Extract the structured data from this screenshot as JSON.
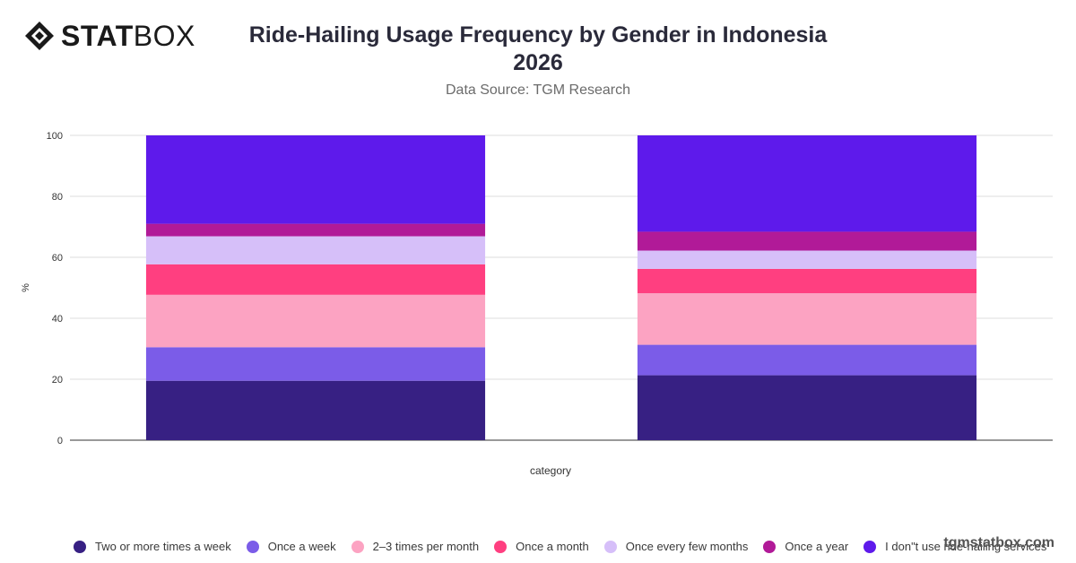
{
  "header": {
    "logo_text_bold": "STAT",
    "logo_text_light": "BOX",
    "title_line1": "Ride-Hailing Usage Frequency by Gender in Indonesia",
    "title_line2": "2026",
    "subtitle": "Data Source: TGM Research"
  },
  "watermark": "tgmstatbox.com",
  "chart_data": {
    "type": "bar",
    "stacked": true,
    "categories": [
      "",
      ""
    ],
    "xlabel": "category",
    "ylabel": "%",
    "ylim": [
      0,
      100
    ],
    "yticks": [
      0,
      20,
      40,
      60,
      80,
      100
    ],
    "grid": true,
    "legend_position": "bottom",
    "series": [
      {
        "name": "Two or more times a week",
        "color": "#372083",
        "values": [
          19.5,
          21.3
        ]
      },
      {
        "name": "Once a week",
        "color": "#7b5ce8",
        "values": [
          11.0,
          10.0
        ]
      },
      {
        "name": "2–3 times per month",
        "color": "#fca3c2",
        "values": [
          17.2,
          16.9
        ]
      },
      {
        "name": "Once a month",
        "color": "#ff3f80",
        "values": [
          10.0,
          8.0
        ]
      },
      {
        "name": "Once every few months",
        "color": "#d6bff9",
        "values": [
          9.2,
          6.0
        ]
      },
      {
        "name": "Once a year",
        "color": "#b11a98",
        "values": [
          4.1,
          6.2
        ]
      },
      {
        "name": "I don\"t use ride-hailing services",
        "color": "#5e1aeb",
        "values": [
          29.0,
          31.6
        ]
      }
    ]
  }
}
